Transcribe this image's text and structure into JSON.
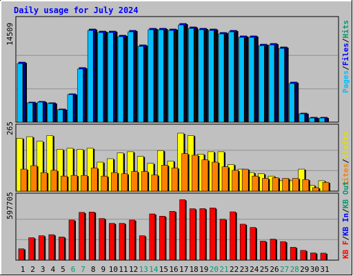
{
  "chart_data": {
    "type": "bar",
    "title": "Daily usage for July 2024",
    "categories": [
      "1",
      "2",
      "3",
      "4",
      "5",
      "6",
      "7",
      "8",
      "9",
      "10",
      "11",
      "12",
      "13",
      "14",
      "15",
      "16",
      "17",
      "18",
      "19",
      "20",
      "21",
      "22",
      "23",
      "24",
      "25",
      "26",
      "27",
      "28",
      "29",
      "30",
      "31"
    ],
    "weekend_days": [
      "6",
      "7",
      "13",
      "14",
      "20",
      "21",
      "27",
      "28"
    ],
    "panels": [
      {
        "id": "top",
        "ymax_label": "14509",
        "ymax": 14509,
        "legend": [
          "Pages",
          "Files",
          "Hits"
        ],
        "series": [
          {
            "name": "Hits",
            "color": "#009a74",
            "values": [
              8700,
              2900,
              3000,
              2800,
              1900,
              4100,
              7900,
              13500,
              13200,
              13200,
              12600,
              13300,
              11200,
              13600,
              13600,
              13500,
              14300,
              13800,
              13600,
              13500,
              13000,
              13300,
              12500,
              12500,
              11300,
              11400,
              10900,
              5800,
              1300,
              700,
              700
            ]
          },
          {
            "name": "Files",
            "color": "#0000ff",
            "values": [
              8700,
              2900,
              3000,
              2800,
              1900,
              4100,
              7900,
              13500,
              13200,
              13200,
              12600,
              13300,
              11200,
              13600,
              13600,
              13500,
              14300,
              13800,
              13600,
              13500,
              13000,
              13300,
              12500,
              12500,
              11300,
              11400,
              10900,
              5800,
              1300,
              700,
              700
            ]
          },
          {
            "name": "Pages",
            "color": "#00c0ff",
            "values": [
              8500,
              2800,
              2900,
              2700,
              1800,
              4000,
              7700,
              13300,
              13000,
              13000,
              12400,
              13100,
              11000,
              13400,
              13400,
              13300,
              14100,
              13600,
              13400,
              13300,
              12800,
              13100,
              12300,
              12300,
              11100,
              11200,
              10700,
              5600,
              1200,
              600,
              600
            ]
          }
        ]
      },
      {
        "id": "middle",
        "ymax_label": "265",
        "ymax": 265,
        "legend": [
          "Sites",
          "Visits"
        ],
        "series": [
          {
            "name": "Visits",
            "color": "#ffff00",
            "values": [
              228,
              235,
              215,
              240,
              180,
              185,
              180,
              185,
              125,
              140,
              165,
              170,
              150,
              120,
              175,
              130,
              250,
              240,
              160,
              170,
              170,
              115,
              95,
              80,
              75,
              65,
              45,
              45,
              95,
              25,
              45
            ]
          },
          {
            "name": "Sites",
            "color": "#ff8000",
            "values": [
              95,
              110,
              80,
              90,
              65,
              68,
              68,
              100,
              65,
              80,
              75,
              85,
              85,
              70,
              112,
              100,
              162,
              155,
              135,
              125,
              105,
              90,
              95,
              65,
              55,
              58,
              55,
              55,
              50,
              15,
              38
            ]
          }
        ]
      },
      {
        "id": "bottom",
        "ymax_label": "597705",
        "ymax": 597705,
        "legend": [
          "KB F",
          "KB In",
          "KB Out"
        ],
        "series": [
          {
            "name": "KB F",
            "color": "#ff0000",
            "values": [
              110000,
              218000,
              238000,
              248000,
              225000,
              390000,
              465000,
              468000,
              405000,
              358000,
              358000,
              390000,
              238000,
              450000,
              428000,
              475000,
              588000,
              500000,
              502000,
              508000,
              398000,
              470000,
              350000,
              318000,
              185000,
              205000,
              180000,
              125000,
              95000,
              70000,
              68000
            ]
          }
        ]
      }
    ]
  }
}
